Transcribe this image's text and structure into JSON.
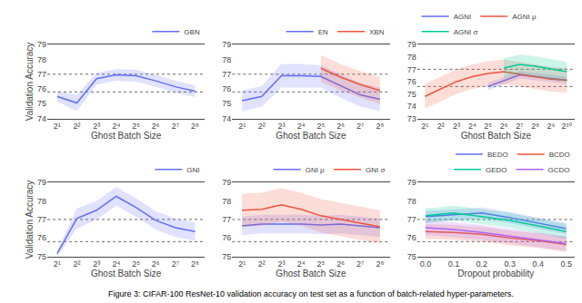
{
  "chart_data": [
    {
      "type": "line",
      "xlabel": "Ghost Batch Size",
      "ylabel": "Validation Accuracy",
      "categories": [
        "2¹",
        "2²",
        "2³",
        "2⁴",
        "2⁵",
        "2⁶",
        "2⁷",
        "2⁸"
      ],
      "ylim": [
        74,
        79
      ],
      "yticks": [
        74,
        75,
        76,
        77,
        78,
        79
      ],
      "hlines": [
        77.0,
        75.8
      ],
      "grid": false,
      "legend": "upper right",
      "series": [
        {
          "name": "GBN",
          "values": [
            75.5,
            75.05,
            76.7,
            76.95,
            76.9,
            76.55,
            76.15,
            75.85
          ],
          "lower": [
            75.15,
            74.5,
            76.3,
            76.55,
            76.5,
            76.15,
            75.75,
            75.45
          ],
          "upper": [
            75.85,
            75.6,
            77.1,
            77.35,
            77.3,
            76.95,
            76.55,
            76.25
          ]
        }
      ]
    },
    {
      "type": "line",
      "xlabel": "Ghost Batch Size",
      "categories": [
        "2¹",
        "2²",
        "2³",
        "2⁴",
        "2⁵",
        "2⁶",
        "2⁷",
        "2⁸"
      ],
      "ylim": [
        74,
        79
      ],
      "yticks": [
        74,
        75,
        76,
        77,
        78,
        79
      ],
      "hlines": [
        77.0,
        75.8
      ],
      "grid": false,
      "legend": "upper right",
      "series": [
        {
          "name": "EN",
          "values": [
            75.2,
            75.5,
            76.9,
            76.9,
            76.85,
            76.2,
            75.6,
            75.3
          ],
          "lower": [
            74.5,
            74.8,
            76.1,
            76.1,
            76.1,
            75.4,
            74.8,
            74.5
          ],
          "upper": [
            75.9,
            76.2,
            77.7,
            77.7,
            77.6,
            77.0,
            76.4,
            76.1
          ]
        },
        {
          "name": "XBN",
          "values": [
            null,
            null,
            null,
            null,
            77.4,
            76.8,
            76.3,
            75.9
          ],
          "lower": [
            null,
            null,
            null,
            null,
            76.5,
            75.9,
            75.4,
            75.0
          ],
          "upper": [
            null,
            null,
            null,
            null,
            78.3,
            77.7,
            77.2,
            76.8
          ]
        }
      ]
    },
    {
      "type": "line",
      "xlabel": "Ghost Batch Size",
      "categories": [
        "2¹",
        "2²",
        "2³",
        "2⁴",
        "2⁵",
        "2⁶",
        "2⁷",
        "2⁸",
        "2⁹",
        "2¹⁰"
      ],
      "ylim": [
        73,
        79
      ],
      "yticks": [
        73,
        74,
        75,
        76,
        77,
        78,
        79
      ],
      "hlines": [
        77.0,
        75.6
      ],
      "grid": false,
      "legend": "upper left",
      "series": [
        {
          "name": "AGNI",
          "values": [
            null,
            null,
            null,
            null,
            75.6,
            76.05,
            76.55,
            76.4,
            76.25,
            76.1
          ],
          "lower": [
            null,
            null,
            null,
            null,
            75.3,
            75.75,
            76.25,
            76.1,
            75.95,
            75.8
          ],
          "upper": [
            null,
            null,
            null,
            null,
            75.9,
            76.35,
            76.85,
            76.7,
            76.55,
            76.4
          ]
        },
        {
          "name": "AGNI μ",
          "values": [
            74.8,
            75.4,
            76.0,
            76.4,
            76.65,
            76.8,
            76.6,
            76.4,
            76.2,
            76.1
          ],
          "lower": [
            73.8,
            74.4,
            75.0,
            75.4,
            75.65,
            75.8,
            75.6,
            75.4,
            75.2,
            75.1
          ],
          "upper": [
            75.8,
            76.4,
            77.0,
            77.4,
            77.65,
            77.8,
            77.6,
            77.4,
            77.2,
            77.1
          ]
        },
        {
          "name": "AGNI σ",
          "values": [
            null,
            null,
            null,
            null,
            null,
            77.1,
            77.4,
            77.25,
            77.0,
            76.8
          ],
          "lower": [
            null,
            null,
            null,
            null,
            null,
            76.3,
            76.6,
            76.45,
            76.2,
            76.0
          ],
          "upper": [
            null,
            null,
            null,
            null,
            null,
            77.9,
            78.2,
            78.05,
            77.8,
            77.6
          ]
        }
      ]
    },
    {
      "type": "line",
      "xlabel": "Ghost Batch Size",
      "ylabel": "Validation Accuracy",
      "categories": [
        "2¹",
        "2²",
        "2³",
        "2⁴",
        "2⁵",
        "2⁶",
        "2⁷",
        "2⁸"
      ],
      "ylim": [
        75,
        79
      ],
      "yticks": [
        75,
        76,
        77,
        78,
        79
      ],
      "hlines": [
        77.0,
        75.8
      ],
      "grid": false,
      "legend": "upper right",
      "series": [
        {
          "name": "GNI",
          "values": [
            75.15,
            77.05,
            77.5,
            78.25,
            77.65,
            76.95,
            76.55,
            76.35
          ],
          "lower": [
            75.0,
            76.5,
            77.0,
            77.75,
            77.15,
            76.45,
            76.05,
            75.85
          ],
          "upper": [
            75.3,
            77.6,
            78.0,
            78.75,
            78.15,
            77.45,
            77.05,
            76.85
          ]
        }
      ]
    },
    {
      "type": "line",
      "xlabel": "Ghost Batch Size",
      "categories": [
        "2¹",
        "2²",
        "2³",
        "2⁴",
        "2⁵",
        "2⁶",
        "2⁷",
        "2⁸"
      ],
      "ylim": [
        75,
        79
      ],
      "yticks": [
        75,
        76,
        77,
        78,
        79
      ],
      "hlines": [
        77.0,
        75.8
      ],
      "grid": false,
      "legend": "upper right",
      "series": [
        {
          "name": "GNI μ",
          "values": [
            76.65,
            76.75,
            76.75,
            76.75,
            76.7,
            76.75,
            76.65,
            76.55
          ],
          "lower": [
            76.15,
            76.25,
            76.25,
            76.25,
            76.2,
            76.25,
            76.15,
            76.05
          ],
          "upper": [
            77.15,
            77.25,
            77.25,
            77.25,
            77.2,
            77.25,
            77.15,
            77.05
          ]
        },
        {
          "name": "GNI σ",
          "values": [
            77.5,
            77.55,
            77.8,
            77.55,
            77.2,
            77.0,
            76.8,
            76.6
          ],
          "lower": [
            76.6,
            76.65,
            76.9,
            76.65,
            76.3,
            76.1,
            75.9,
            75.7
          ],
          "upper": [
            78.4,
            78.45,
            78.7,
            78.45,
            78.1,
            77.9,
            77.7,
            77.5
          ]
        }
      ]
    },
    {
      "type": "line",
      "xlabel": "Dropout probability",
      "x": [
        0.0,
        0.1,
        0.2,
        0.3,
        0.4,
        0.5
      ],
      "xlim": [
        -0.03,
        0.53
      ],
      "xticks": [
        {
          "value": 0.0,
          "label": "0.0"
        },
        0.1,
        0.2,
        0.3,
        0.4,
        0.5
      ],
      "ylim": [
        75,
        79
      ],
      "yticks": [
        75,
        76,
        77,
        78,
        79
      ],
      "hlines": [
        77.0,
        75.8
      ],
      "grid": false,
      "legend": "upper right",
      "series": [
        {
          "name": "BEDO",
          "values": [
            77.15,
            77.25,
            77.35,
            77.1,
            76.8,
            76.5
          ],
          "lower": [
            76.85,
            76.95,
            77.05,
            76.8,
            76.5,
            76.2
          ],
          "upper": [
            77.45,
            77.55,
            77.65,
            77.4,
            77.1,
            76.8
          ]
        },
        {
          "name": "BCDO",
          "values": [
            76.35,
            76.3,
            76.2,
            76.0,
            75.85,
            75.65
          ],
          "lower": [
            75.95,
            75.9,
            75.8,
            75.6,
            75.45,
            75.25
          ],
          "upper": [
            76.75,
            76.7,
            76.6,
            76.4,
            76.25,
            76.05
          ]
        },
        {
          "name": "GEDO",
          "values": [
            77.2,
            77.35,
            77.15,
            76.95,
            76.65,
            76.35
          ],
          "lower": [
            76.8,
            76.95,
            76.75,
            76.55,
            76.25,
            75.95
          ],
          "upper": [
            77.6,
            77.75,
            77.55,
            77.35,
            77.05,
            76.75
          ]
        },
        {
          "name": "GCDO",
          "values": [
            76.55,
            76.45,
            76.3,
            76.1,
            75.9,
            75.7
          ],
          "lower": [
            76.15,
            76.05,
            75.9,
            75.7,
            75.5,
            75.3
          ],
          "upper": [
            76.95,
            76.85,
            76.7,
            76.5,
            76.3,
            76.1
          ]
        }
      ]
    }
  ],
  "caption": "Figure 3: CIFAR-100 ResNet-10 validation accuracy on test set as a function of batch-related hyper-parameters."
}
